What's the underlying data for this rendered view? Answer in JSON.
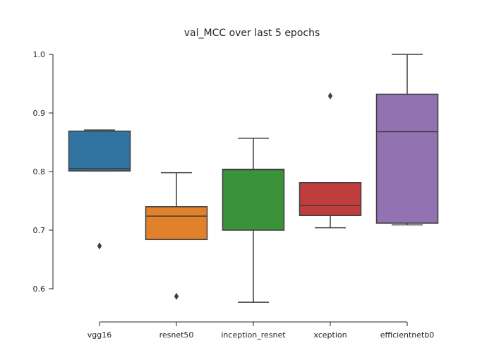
{
  "chart_data": {
    "type": "box",
    "title": "val_MCC over last 5 epochs",
    "xlabel": "",
    "ylabel": "",
    "categories": [
      "vgg16",
      "resnet50",
      "inception_resnet",
      "xception",
      "efficientnetb0"
    ],
    "colors": [
      "#3274a1",
      "#e1812c",
      "#3a923a",
      "#c03d3e",
      "#9372b2"
    ],
    "ylim": [
      0.56,
      1.02
    ],
    "yticks": [
      0.6,
      0.7,
      0.8,
      0.9,
      1.0
    ],
    "ytick_labels": [
      "0.6",
      "0.7",
      "0.8",
      "0.9",
      "1.0"
    ],
    "boxes": [
      {
        "name": "vgg16",
        "whislo": 0.801,
        "q1": 0.801,
        "med": 0.805,
        "q3": 0.869,
        "whishi": 0.871,
        "fliers": [
          0.673
        ]
      },
      {
        "name": "resnet50",
        "whislo": 0.684,
        "q1": 0.684,
        "med": 0.724,
        "q3": 0.74,
        "whishi": 0.798,
        "fliers": [
          0.587
        ]
      },
      {
        "name": "inception_resnet",
        "whislo": 0.577,
        "q1": 0.7,
        "med": 0.803,
        "q3": 0.804,
        "whishi": 0.857,
        "fliers": []
      },
      {
        "name": "xception",
        "whislo": 0.704,
        "q1": 0.725,
        "med": 0.742,
        "q3": 0.781,
        "whishi": 0.781,
        "fliers": [
          0.929
        ]
      },
      {
        "name": "efficientnetb0",
        "whislo": 0.709,
        "q1": 0.712,
        "med": 0.868,
        "q3": 0.932,
        "whishi": 1.0,
        "fliers": []
      }
    ],
    "grid": false,
    "legend": "none"
  }
}
